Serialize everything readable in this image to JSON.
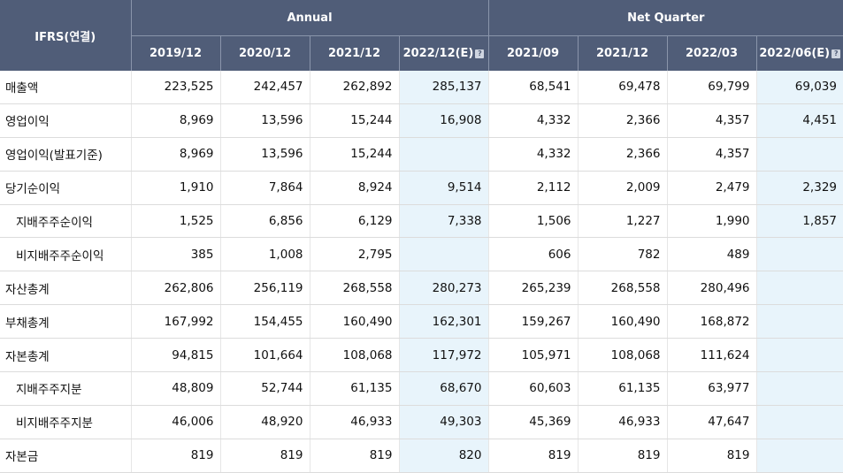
{
  "header": {
    "corner": "IFRS(연결)",
    "annual_label": "Annual",
    "quarter_label": "Net Quarter",
    "columns": [
      {
        "label": "2019/12",
        "estimate": false
      },
      {
        "label": "2020/12",
        "estimate": false
      },
      {
        "label": "2021/12",
        "estimate": false
      },
      {
        "label": "2022/12(E)",
        "estimate": true
      },
      {
        "label": "2021/09",
        "estimate": false
      },
      {
        "label": "2021/12",
        "estimate": false
      },
      {
        "label": "2022/03",
        "estimate": false
      },
      {
        "label": "2022/06(E)",
        "estimate": true
      }
    ],
    "help_icon": "question-icon"
  },
  "rows": [
    {
      "label": "매출액",
      "sub": false,
      "values": [
        "223,525",
        "242,457",
        "262,892",
        "285,137",
        "68,541",
        "69,478",
        "69,799",
        "69,039"
      ]
    },
    {
      "label": "영업이익",
      "sub": false,
      "values": [
        "8,969",
        "13,596",
        "15,244",
        "16,908",
        "4,332",
        "2,366",
        "4,357",
        "4,451"
      ]
    },
    {
      "label": "영업이익(발표기준)",
      "sub": false,
      "values": [
        "8,969",
        "13,596",
        "15,244",
        "",
        "4,332",
        "2,366",
        "4,357",
        ""
      ]
    },
    {
      "label": "당기순이익",
      "sub": false,
      "values": [
        "1,910",
        "7,864",
        "8,924",
        "9,514",
        "2,112",
        "2,009",
        "2,479",
        "2,329"
      ]
    },
    {
      "label": "지배주주순이익",
      "sub": true,
      "values": [
        "1,525",
        "6,856",
        "6,129",
        "7,338",
        "1,506",
        "1,227",
        "1,990",
        "1,857"
      ]
    },
    {
      "label": "비지배주주순이익",
      "sub": true,
      "values": [
        "385",
        "1,008",
        "2,795",
        "",
        "606",
        "782",
        "489",
        ""
      ]
    },
    {
      "label": "자산총계",
      "sub": false,
      "values": [
        "262,806",
        "256,119",
        "268,558",
        "280,273",
        "265,239",
        "268,558",
        "280,496",
        ""
      ]
    },
    {
      "label": "부채총계",
      "sub": false,
      "values": [
        "167,992",
        "154,455",
        "160,490",
        "162,301",
        "159,267",
        "160,490",
        "168,872",
        ""
      ]
    },
    {
      "label": "자본총계",
      "sub": false,
      "values": [
        "94,815",
        "101,664",
        "108,068",
        "117,972",
        "105,971",
        "108,068",
        "111,624",
        ""
      ]
    },
    {
      "label": "지배주주지분",
      "sub": true,
      "values": [
        "48,809",
        "52,744",
        "61,135",
        "68,670",
        "60,603",
        "61,135",
        "63,977",
        ""
      ]
    },
    {
      "label": "비지배주주지분",
      "sub": true,
      "values": [
        "46,006",
        "48,920",
        "46,933",
        "49,303",
        "45,369",
        "46,933",
        "47,647",
        ""
      ]
    },
    {
      "label": "자본금",
      "sub": false,
      "values": [
        "819",
        "819",
        "819",
        "820",
        "819",
        "819",
        "819",
        ""
      ]
    }
  ]
}
